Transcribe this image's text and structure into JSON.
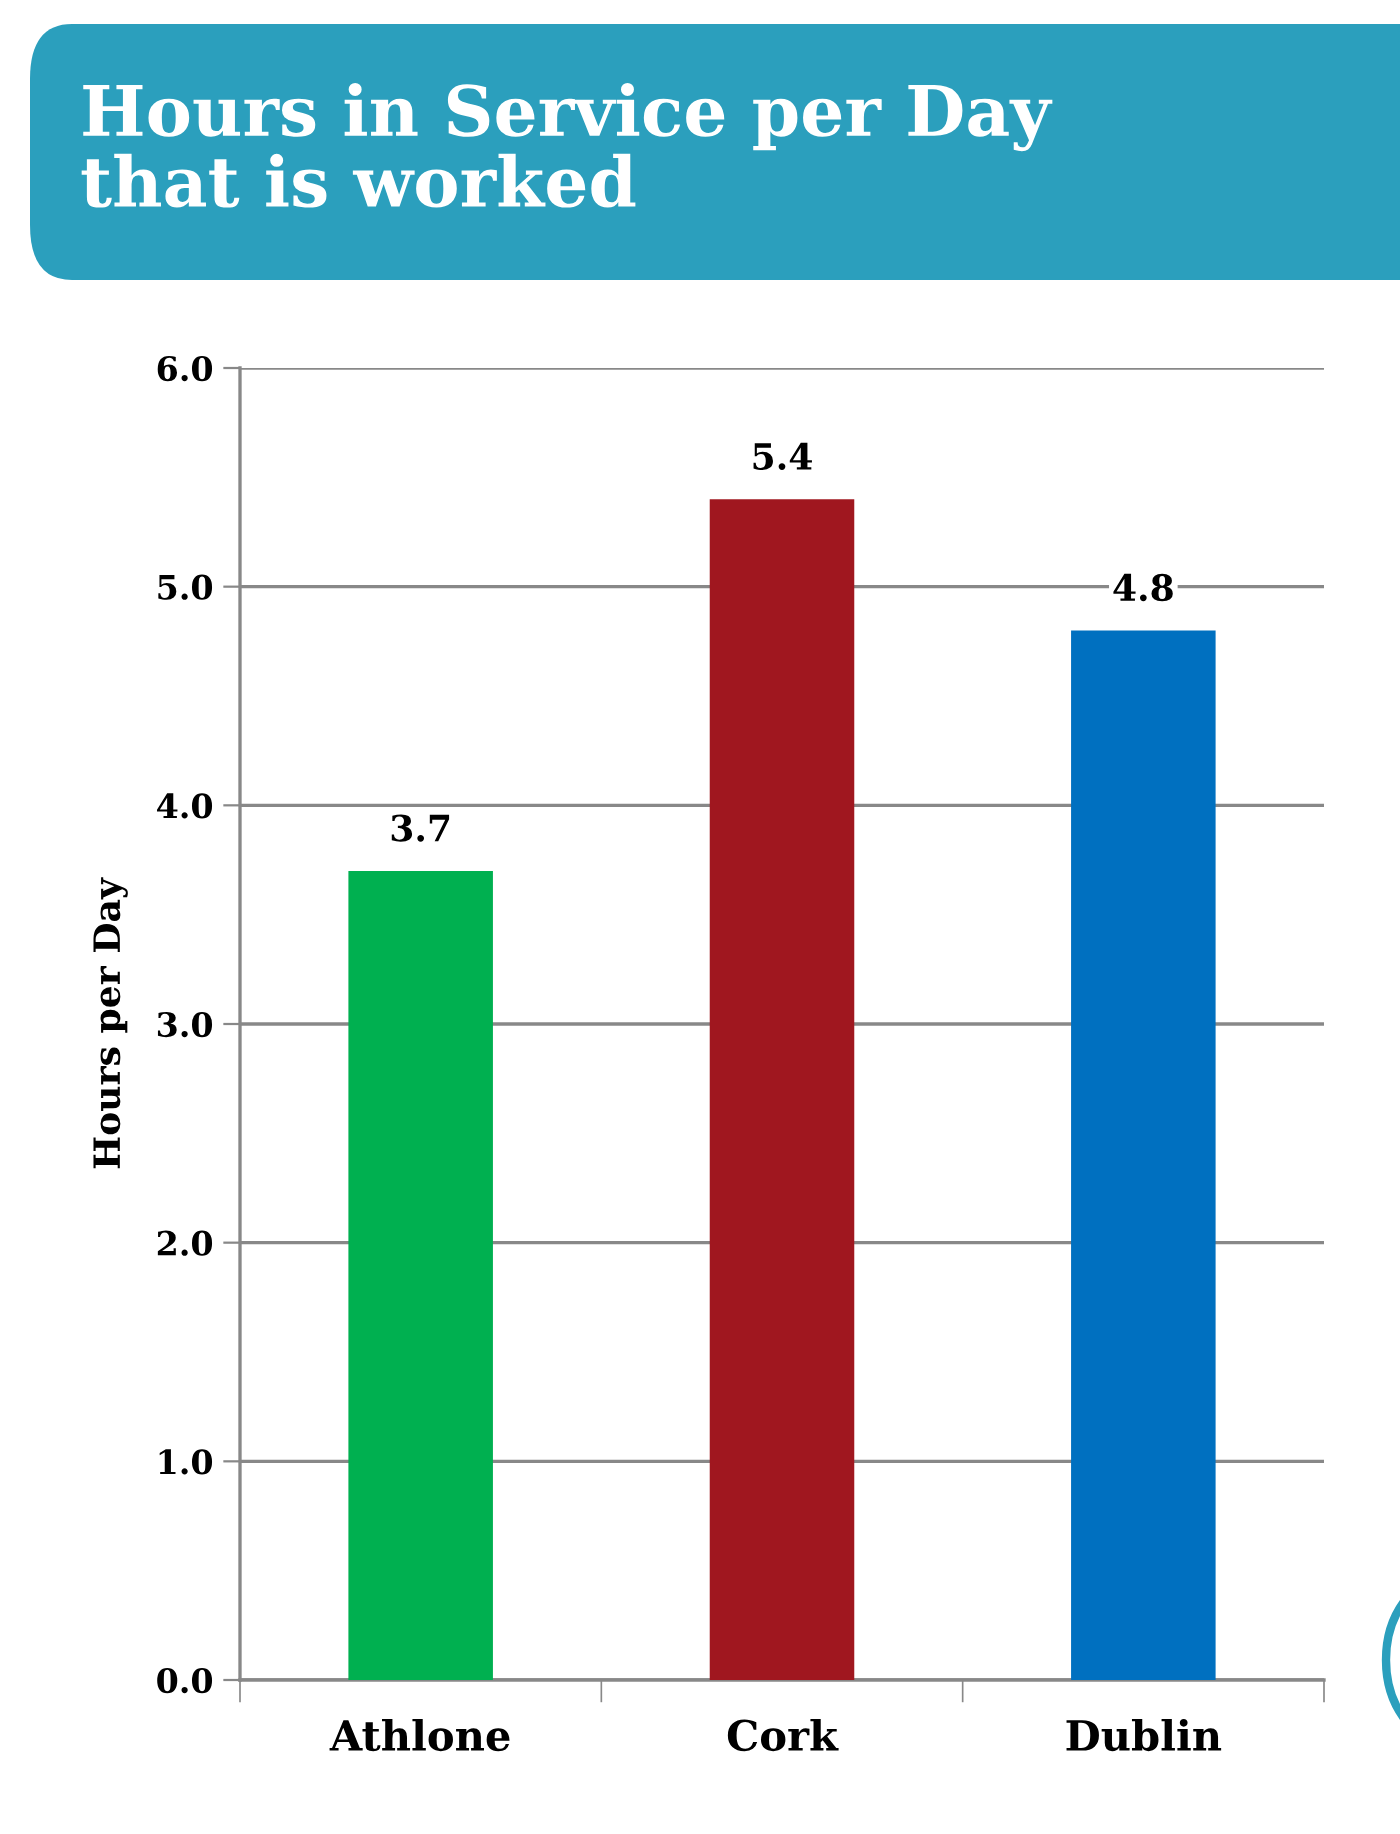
{
  "chart_data": {
    "type": "bar",
    "title": "Hours in Service per Day\nthat is worked",
    "ylabel": "Hours per Day",
    "categories": [
      "Athlone",
      "Cork",
      "Dublin"
    ],
    "values": [
      3.7,
      5.4,
      4.8
    ],
    "colors": [
      "#00b050",
      "#a0171f",
      "#0070c0"
    ],
    "ylim": [
      0,
      6
    ],
    "yticks": [
      {
        "value": 0,
        "label": "0.0"
      },
      {
        "value": 1,
        "label": "1.0"
      },
      {
        "value": 2,
        "label": "2.0"
      },
      {
        "value": 3,
        "label": "3.0"
      },
      {
        "value": 4,
        "label": "4.0"
      },
      {
        "value": 5,
        "label": "5.0"
      },
      {
        "value": 6,
        "label": "6.0"
      }
    ],
    "grid": "y",
    "data_labels": true,
    "legend": false
  }
}
